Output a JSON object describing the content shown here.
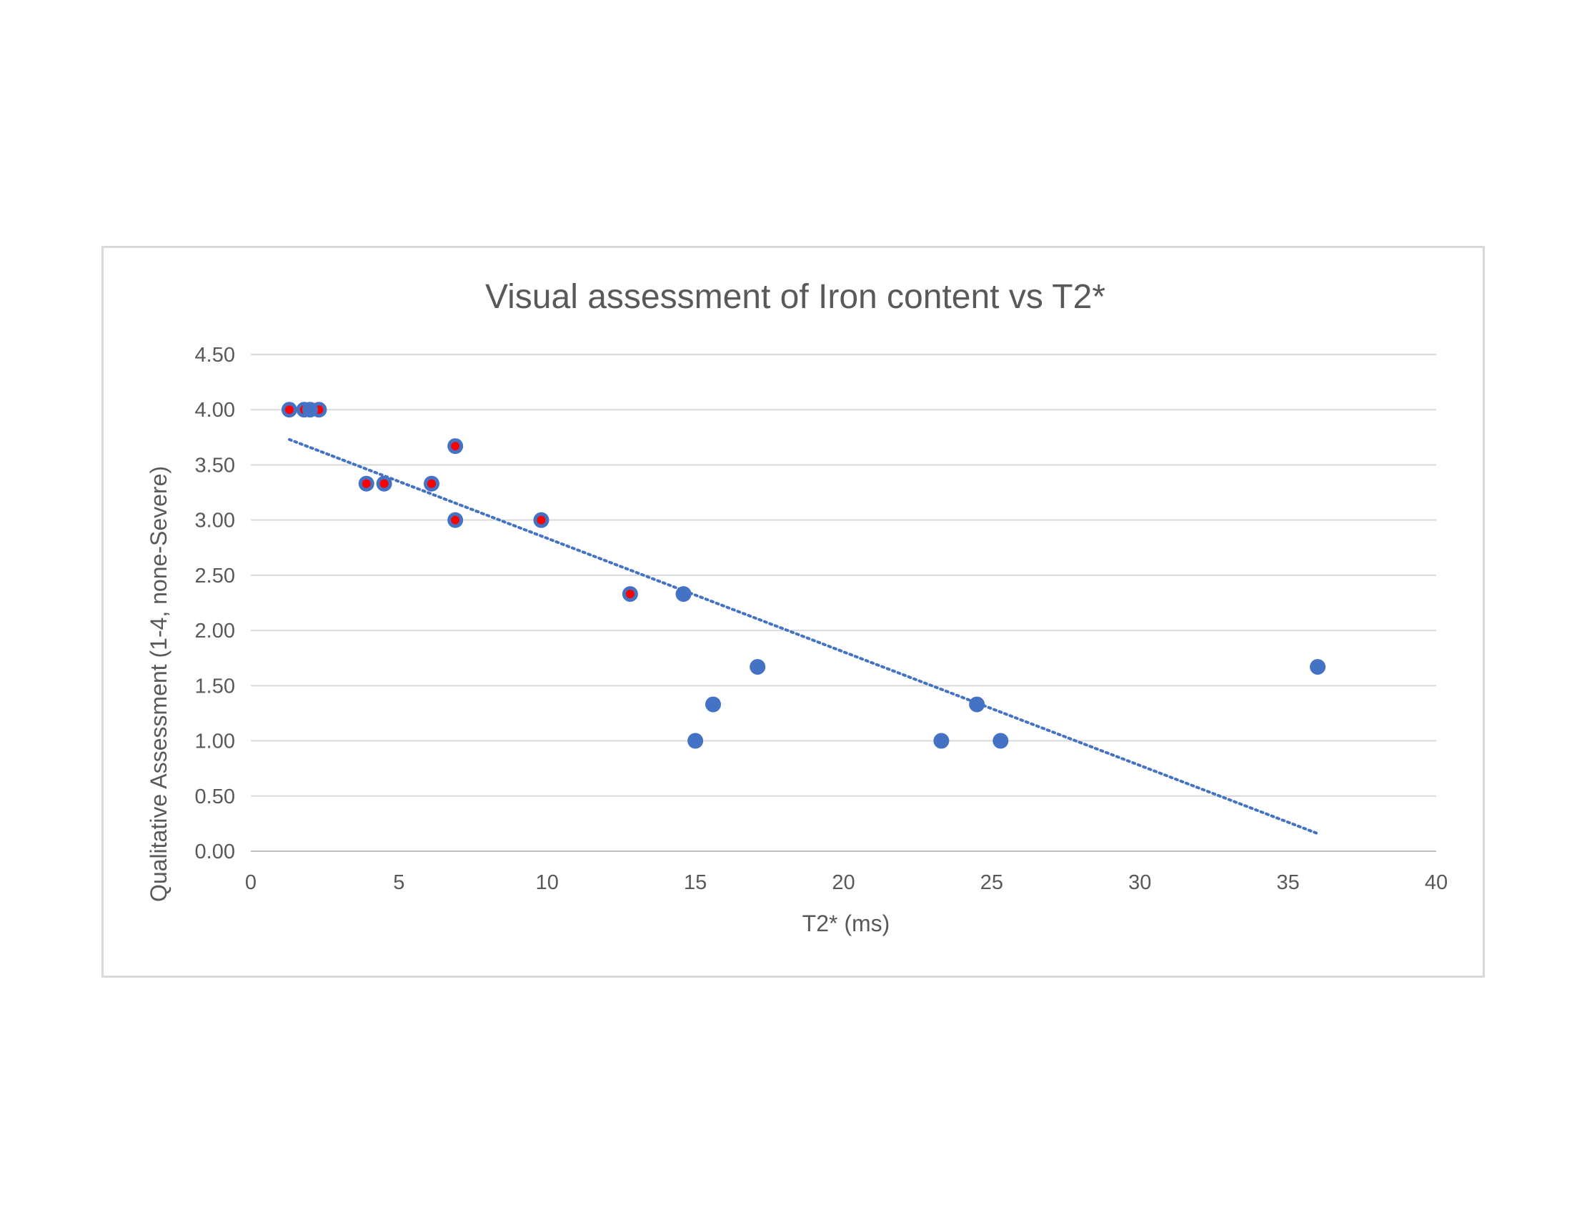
{
  "chart_data": {
    "type": "scatter",
    "title": "Visual assessment of Iron content vs T2*",
    "xlabel": "T2* (ms)",
    "ylabel": "Qualitative Assessment (1-4, none-Severe)",
    "xlim": [
      0,
      40
    ],
    "ylim": [
      0,
      4.5
    ],
    "x_ticks": [
      "0",
      "5",
      "10",
      "15",
      "20",
      "25",
      "30",
      "35",
      "40"
    ],
    "y_ticks": [
      "0.00",
      "0.50",
      "1.00",
      "1.50",
      "2.00",
      "2.50",
      "3.00",
      "3.50",
      "4.00",
      "4.50"
    ],
    "grid": "horizontal",
    "legend": "none",
    "series": [
      {
        "marker_color": "#4472c4",
        "marker_center_color": "#ff0000",
        "points": [
          {
            "x": 1.3,
            "y": 4.0
          },
          {
            "x": 1.8,
            "y": 4.0
          },
          {
            "x": 2.3,
            "y": 4.0
          },
          {
            "x": 3.9,
            "y": 3.33
          },
          {
            "x": 4.5,
            "y": 3.33
          },
          {
            "x": 6.1,
            "y": 3.33
          },
          {
            "x": 6.9,
            "y": 3.67
          },
          {
            "x": 6.9,
            "y": 3.0
          },
          {
            "x": 9.8,
            "y": 3.0
          },
          {
            "x": 12.8,
            "y": 2.33
          }
        ]
      },
      {
        "marker_color": "#4472c4",
        "points": [
          {
            "x": 2.0,
            "y": 4.0
          },
          {
            "x": 14.6,
            "y": 2.33
          },
          {
            "x": 15.0,
            "y": 1.0
          },
          {
            "x": 15.6,
            "y": 1.33
          },
          {
            "x": 17.1,
            "y": 1.67
          },
          {
            "x": 23.3,
            "y": 1.0
          },
          {
            "x": 24.5,
            "y": 1.33
          },
          {
            "x": 25.3,
            "y": 1.0
          },
          {
            "x": 36.0,
            "y": 1.67
          }
        ]
      }
    ],
    "trendline": {
      "type": "linear",
      "style": "dotted",
      "color": "#4472c4",
      "x_range": [
        1.3,
        36.0
      ],
      "y_start": 3.73,
      "y_end": 0.16
    }
  }
}
